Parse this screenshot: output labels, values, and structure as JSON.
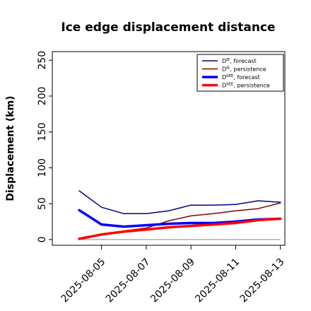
{
  "chart_data": {
    "type": "line",
    "title": "Ice edge displacement distance",
    "xlabel": "",
    "ylabel": "Displacement (km)",
    "x": [
      "2025-08-04",
      "2025-08-05",
      "2025-08-06",
      "2025-08-07",
      "2025-08-08",
      "2025-08-09",
      "2025-08-10",
      "2025-08-11",
      "2025-08-12",
      "2025-08-13"
    ],
    "xticks": [
      "2025-08-05",
      "2025-08-07",
      "2025-08-09",
      "2025-08-11",
      "2025-08-13"
    ],
    "highlight_tick": "2025-08-05",
    "yticks": [
      0,
      50,
      100,
      150,
      200,
      250
    ],
    "ylim": [
      -8,
      262
    ],
    "grid": false,
    "legend_position": "top-right",
    "series": [
      {
        "name": "D^IE, forecast",
        "values": [
          68,
          45,
          36,
          36,
          40,
          48,
          48,
          49,
          54,
          52
        ],
        "color": "#00008b",
        "width": 1.5
      },
      {
        "name": "D^IE, persistence",
        "values": [
          1,
          8,
          12,
          16,
          26,
          33,
          36,
          40,
          43,
          51
        ],
        "color": "#8b0000",
        "width": 1.5
      },
      {
        "name": "D^IIEE, forecast",
        "values": [
          41,
          21,
          18,
          20,
          22,
          23,
          23,
          25,
          28,
          29
        ],
        "color": "#0000ff",
        "width": 3.5
      },
      {
        "name": "D^IIEE, persistence",
        "values": [
          1,
          7,
          11,
          14,
          17,
          19,
          21,
          23,
          27,
          29
        ],
        "color": "#ff0000",
        "width": 3.5
      }
    ],
    "legend": [
      {
        "main": "D",
        "sup": "IE",
        "rest": ", forecast",
        "series": 0
      },
      {
        "main": "D",
        "sup": "IE",
        "rest": ", persistence",
        "series": 1
      },
      {
        "main": "D",
        "sup": "IIEE",
        "rest": ", forecast",
        "series": 2
      },
      {
        "main": "D",
        "sup": "IIEE",
        "rest": ", persistence",
        "series": 3
      }
    ],
    "zero_line_color": "#888888",
    "highlight_color": "#228b22"
  }
}
